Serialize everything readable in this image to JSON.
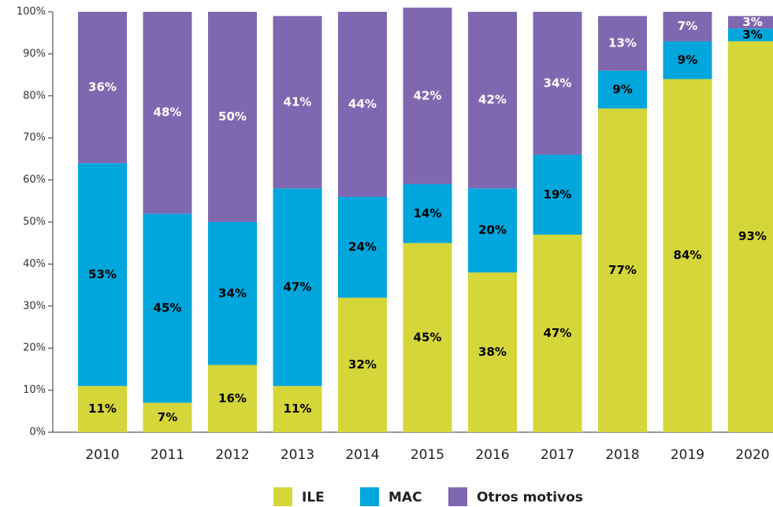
{
  "chart_data": {
    "type": "stacked_bar",
    "categories": [
      "2010",
      "2011",
      "2012",
      "2013",
      "2014",
      "2015",
      "2016",
      "2017",
      "2018",
      "2019",
      "2020"
    ],
    "series": [
      {
        "name": "ILE",
        "color": "#d4d63a",
        "label_color": "#000000",
        "values": [
          11,
          7,
          16,
          11,
          32,
          45,
          38,
          47,
          77,
          84,
          93
        ],
        "value_labels": [
          "11%",
          "7%",
          "16%",
          "11%",
          "32%",
          "45%",
          "38%",
          "47%",
          "77%",
          "84%",
          "93%"
        ]
      },
      {
        "name": "MAC",
        "color": "#00a6dc",
        "label_color": "#000000",
        "values": [
          53,
          45,
          34,
          47,
          24,
          14,
          20,
          19,
          9,
          9,
          3
        ],
        "value_labels": [
          "53%",
          "45%",
          "34%",
          "47%",
          "24%",
          "14%",
          "20%",
          "19%",
          "9%",
          "9%",
          "3%"
        ]
      },
      {
        "name": "Otros motivos",
        "color": "#8068b0",
        "label_color": "#ffffff",
        "values": [
          36,
          48,
          50,
          41,
          44,
          42,
          42,
          34,
          13,
          7,
          3
        ],
        "value_labels": [
          "36%",
          "48%",
          "50%",
          "41%",
          "44%",
          "42%",
          "42%",
          "34%",
          "13%",
          "7%",
          "3%"
        ]
      }
    ],
    "ylim": [
      0,
      100
    ],
    "yticks": [
      {
        "value": 0,
        "label": "0%"
      },
      {
        "value": 10,
        "label": "10%"
      },
      {
        "value": 20,
        "label": "20%"
      },
      {
        "value": 30,
        "label": "30%"
      },
      {
        "value": 40,
        "label": "40%"
      },
      {
        "value": 50,
        "label": "50%"
      },
      {
        "value": 60,
        "label": "60%"
      },
      {
        "value": 70,
        "label": "70%"
      },
      {
        "value": 80,
        "label": "80%"
      },
      {
        "value": 90,
        "label": "90%"
      },
      {
        "value": 100,
        "label": "100%"
      }
    ],
    "legend": "bottom"
  }
}
